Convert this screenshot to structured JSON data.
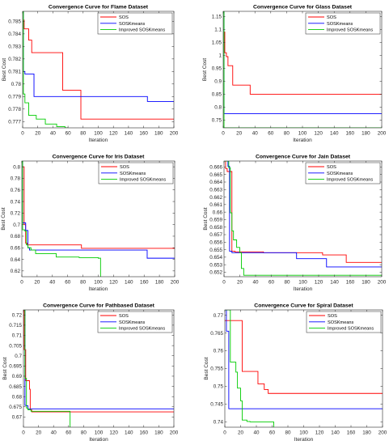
{
  "figure": {
    "background": "#ffffff"
  },
  "colors": {
    "SOS": "#ff0000",
    "SOSKmeans": "#0000ff",
    "Improved SOSKmeans": "#00cc00"
  },
  "chart_data": [
    {
      "type": "line",
      "title": "Convergence Curve for Flame Dataset",
      "xlabel": "Iteration",
      "ylabel": "Best Cost",
      "xlim": [
        0,
        200
      ],
      "ylim": [
        0.7765,
        0.7858
      ],
      "xticks": [
        0,
        20,
        40,
        60,
        80,
        100,
        120,
        140,
        160,
        180,
        200
      ],
      "yticks": [
        0.777,
        0.778,
        0.779,
        0.78,
        0.781,
        0.782,
        0.783,
        0.784,
        0.785
      ],
      "ytick_labels": [
        "0.777",
        "0.778",
        "0.779",
        "0.78",
        "0.781",
        "0.782",
        "0.783",
        "0.784",
        "0.785"
      ],
      "legend": {
        "placement": "top-right",
        "entries": [
          "SOS",
          "SOSKmeans",
          "Improved SOSKmeans"
        ]
      },
      "series": [
        {
          "name": "SOS",
          "color": "#ff0000",
          "x": [
            0,
            1,
            2,
            8,
            12,
            30,
            50,
            53,
            74,
            77,
            200
          ],
          "y": [
            0.7858,
            0.7851,
            0.7844,
            0.7835,
            0.7825,
            0.7825,
            0.7825,
            0.7795,
            0.7795,
            0.7772,
            0.7772
          ]
        },
        {
          "name": "SOSKmeans",
          "color": "#0000ff",
          "x": [
            0,
            1,
            3,
            10,
            15,
            40,
            80,
            160,
            165,
            200
          ],
          "y": [
            0.7858,
            0.781,
            0.7808,
            0.7808,
            0.779,
            0.779,
            0.779,
            0.779,
            0.7786,
            0.7786
          ]
        },
        {
          "name": "Improved SOSKmeans",
          "color": "#00cc00",
          "x": [
            0,
            1,
            3,
            8,
            18,
            30,
            45,
            56,
            60
          ],
          "y": [
            0.7858,
            0.7792,
            0.7785,
            0.7775,
            0.7772,
            0.7768,
            0.7766,
            0.7765,
            0.7765
          ]
        }
      ]
    },
    {
      "type": "line",
      "title": "Convergence Curve for Glass Dataset",
      "xlabel": "Iteration",
      "ylabel": "Best Cost",
      "xlim": [
        0,
        200
      ],
      "ylim": [
        0.72,
        1.17
      ],
      "xticks": [
        0,
        20,
        40,
        60,
        80,
        100,
        120,
        140,
        160,
        180,
        200
      ],
      "yticks": [
        0.75,
        0.8,
        0.85,
        0.9,
        0.95,
        1,
        1.05,
        1.1,
        1.15
      ],
      "ytick_labels": [
        "0.75",
        "0.8",
        "0.85",
        "0.9",
        "0.95",
        "1",
        "1.05",
        "1.1",
        "1.15"
      ],
      "legend": {
        "placement": "top-right",
        "entries": [
          "SOS",
          "SOSKmeans",
          "Improved SOSKmeans"
        ]
      },
      "series": [
        {
          "name": "SOS",
          "color": "#ff0000",
          "x": [
            0,
            1,
            2,
            4,
            6,
            9,
            12,
            20,
            34,
            40,
            200
          ],
          "y": [
            1.17,
            1.09,
            1.01,
            0.995,
            0.96,
            0.96,
            0.885,
            0.885,
            0.85,
            0.85,
            0.85
          ]
        },
        {
          "name": "SOSKmeans",
          "color": "#0000ff",
          "x": [
            0,
            1,
            2,
            200
          ],
          "y": [
            1.17,
            0.775,
            0.775,
            0.775
          ]
        },
        {
          "name": "Improved SOSKmeans",
          "color": "#00cc00",
          "x": [
            0,
            1,
            2,
            200
          ],
          "y": [
            1.17,
            0.72,
            0.72,
            0.72
          ]
        }
      ]
    },
    {
      "type": "line",
      "title": "Convergence Curve for Iris Dataset",
      "xlabel": "Iteration",
      "ylabel": "Best Cost",
      "xlim": [
        0,
        200
      ],
      "ylim": [
        0.61,
        0.81
      ],
      "xticks": [
        0,
        20,
        40,
        60,
        80,
        100,
        120,
        140,
        160,
        180,
        200
      ],
      "yticks": [
        0.62,
        0.64,
        0.66,
        0.68,
        0.7,
        0.72,
        0.74,
        0.76,
        0.78,
        0.8
      ],
      "ytick_labels": [
        "0.62",
        "0.64",
        "0.66",
        "0.68",
        "0.7",
        "0.72",
        "0.74",
        "0.76",
        "0.78",
        "0.8"
      ],
      "legend": {
        "placement": "top-right",
        "entries": [
          "SOS",
          "SOSKmeans",
          "Improved SOSKmeans"
        ]
      },
      "series": [
        {
          "name": "SOS",
          "color": "#ff0000",
          "x": [
            0,
            1,
            3,
            5,
            7,
            75,
            78,
            200
          ],
          "y": [
            0.81,
            0.8,
            0.7,
            0.668,
            0.665,
            0.665,
            0.659,
            0.659
          ]
        },
        {
          "name": "SOSKmeans",
          "color": "#0000ff",
          "x": [
            0,
            1,
            3,
            5,
            8,
            10,
            80,
            160,
            164,
            200
          ],
          "y": [
            0.81,
            0.703,
            0.703,
            0.69,
            0.66,
            0.656,
            0.656,
            0.656,
            0.642,
            0.642
          ]
        },
        {
          "name": "Improved SOSKmeans",
          "color": "#00cc00",
          "x": [
            0,
            1,
            4,
            6,
            8,
            12,
            18,
            45,
            75,
            95,
            100,
            103
          ],
          "y": [
            0.81,
            0.691,
            0.689,
            0.665,
            0.66,
            0.656,
            0.65,
            0.644,
            0.643,
            0.643,
            0.642,
            0.61
          ]
        }
      ]
    },
    {
      "type": "line",
      "title": "Convergence Curve for Jain Dataset",
      "xlabel": "Iteration",
      "ylabel": "Best Cost",
      "xlim": [
        0,
        200
      ],
      "ylim": [
        0.6514,
        0.6668
      ],
      "xticks": [
        0,
        20,
        40,
        60,
        80,
        100,
        120,
        140,
        160,
        180,
        200
      ],
      "yticks": [
        0.652,
        0.653,
        0.654,
        0.655,
        0.656,
        0.657,
        0.658,
        0.659,
        0.66,
        0.661,
        0.662,
        0.663,
        0.664,
        0.665,
        0.666
      ],
      "ytick_labels": [
        "0.652",
        "0.653",
        "0.654",
        "0.655",
        "0.656",
        "0.657",
        "0.658",
        "0.659",
        "0.66",
        "0.661",
        "0.662",
        "0.663",
        "0.664",
        "0.665",
        "0.666"
      ],
      "legend": {
        "placement": "top-right",
        "entries": [
          "SOS",
          "SOSKmeans",
          "Improved SOSKmeans"
        ]
      },
      "series": [
        {
          "name": "SOS",
          "color": "#ff0000",
          "x": [
            0,
            2,
            4,
            8,
            10,
            14,
            50,
            90,
            125,
            155,
            200
          ],
          "y": [
            0.6668,
            0.6658,
            0.6654,
            0.6654,
            0.6548,
            0.6547,
            0.6546,
            0.6546,
            0.6543,
            0.6533,
            0.6533
          ]
        },
        {
          "name": "SOSKmeans",
          "color": "#0000ff",
          "x": [
            0,
            5,
            7,
            9,
            10,
            12,
            50,
            90,
            92,
            125,
            130,
            200
          ],
          "y": [
            0.6668,
            0.6661,
            0.6548,
            0.6548,
            0.6546,
            0.6546,
            0.6546,
            0.6546,
            0.6538,
            0.6538,
            0.6527,
            0.6527
          ]
        },
        {
          "name": "Improved SOSKmeans",
          "color": "#00cc00",
          "x": [
            0,
            6,
            8,
            10,
            12,
            16,
            20,
            22,
            25,
            200
          ],
          "y": [
            0.6668,
            0.6659,
            0.6599,
            0.6575,
            0.6563,
            0.6553,
            0.6546,
            0.6525,
            0.6516,
            0.6514
          ]
        }
      ]
    },
    {
      "type": "line",
      "title": "Convergence Curve for Pathbased Dataset",
      "xlabel": "Iteration",
      "ylabel": "Best Cost",
      "xlim": [
        0,
        200
      ],
      "ylim": [
        0.665,
        0.7225
      ],
      "xticks": [
        0,
        20,
        40,
        60,
        80,
        100,
        120,
        140,
        160,
        180,
        200
      ],
      "yticks": [
        0.67,
        0.675,
        0.68,
        0.685,
        0.69,
        0.695,
        0.7,
        0.705,
        0.71,
        0.715,
        0.72
      ],
      "ytick_labels": [
        "0.67",
        "0.675",
        "0.68",
        "0.685",
        "0.69",
        "0.695",
        "0.7",
        "0.705",
        "0.71",
        "0.715",
        "0.72"
      ],
      "legend": {
        "placement": "top-right",
        "entries": [
          "SOS",
          "SOSKmeans",
          "Improved SOSKmeans"
        ]
      },
      "series": [
        {
          "name": "SOS",
          "color": "#ff0000",
          "x": [
            0,
            1,
            3,
            6,
            8,
            9,
            11,
            200
          ],
          "y": [
            0.7225,
            0.703,
            0.6878,
            0.6878,
            0.6836,
            0.6735,
            0.6725,
            0.6725
          ]
        },
        {
          "name": "SOSKmeans",
          "color": "#0000ff",
          "x": [
            0,
            2,
            4,
            6,
            200
          ],
          "y": [
            0.7225,
            0.6757,
            0.6755,
            0.674,
            0.674
          ]
        },
        {
          "name": "Improved SOSKmeans",
          "color": "#00cc00",
          "x": [
            0,
            2,
            4,
            6,
            10,
            60,
            62
          ],
          "y": [
            0.7225,
            0.6889,
            0.6744,
            0.6735,
            0.6728,
            0.6728,
            0.665
          ]
        }
      ]
    },
    {
      "type": "line",
      "title": "Convergence Curve for Spiral Dataset",
      "xlabel": "Iteration",
      "ylabel": "Best Cost",
      "xlim": [
        0,
        200
      ],
      "ylim": [
        0.7385,
        0.7715
      ],
      "xticks": [
        0,
        20,
        40,
        60,
        80,
        100,
        120,
        140,
        160,
        180,
        200
      ],
      "yticks": [
        0.74,
        0.745,
        0.75,
        0.755,
        0.76,
        0.765,
        0.77
      ],
      "ytick_labels": [
        "0.74",
        "0.745",
        "0.75",
        "0.755",
        "0.76",
        "0.765",
        "0.77"
      ],
      "legend": {
        "placement": "top-right",
        "entries": [
          "SOS",
          "SOSKmeans",
          "Improved SOSKmeans"
        ]
      },
      "series": [
        {
          "name": "SOS",
          "color": "#ff0000",
          "x": [
            0,
            20,
            22,
            40,
            42,
            45,
            50,
            52,
            55,
            200
          ],
          "y": [
            0.7685,
            0.7685,
            0.7542,
            0.7542,
            0.7507,
            0.7507,
            0.7491,
            0.7491,
            0.748,
            0.748
          ]
        },
        {
          "name": "SOSKmeans",
          "color": "#0000ff",
          "x": [
            0,
            2,
            5,
            7,
            200
          ],
          "y": [
            0.7715,
            0.7655,
            0.7437,
            0.7437,
            0.7437
          ]
        },
        {
          "name": "Improved SOSKmeans",
          "color": "#00cc00",
          "x": [
            0,
            7,
            10,
            14,
            16,
            20,
            22,
            28,
            32,
            60,
            62
          ],
          "y": [
            0.7715,
            0.7568,
            0.7568,
            0.754,
            0.7495,
            0.7459,
            0.7405,
            0.7401,
            0.74,
            0.74,
            0.7385
          ]
        }
      ]
    }
  ]
}
